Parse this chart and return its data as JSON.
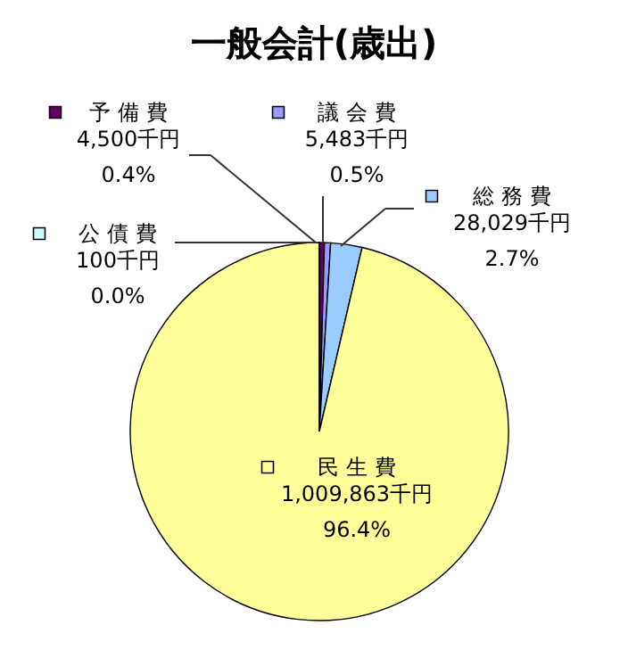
{
  "chart_data": {
    "type": "pie",
    "title": "一般会計(歳出)",
    "categories": [
      "予 備 費",
      "議 会 費",
      "総 務 費",
      "民 生 費",
      "公 債 費"
    ],
    "values": [
      4500,
      5483,
      28029,
      1009863,
      100
    ],
    "colors": [
      "#660066",
      "#9999ff",
      "#99ccff",
      "#ffff99",
      "#ccffff"
    ],
    "value_labels": [
      "4,500千円\n0.4%",
      "5,483千円\n0.5%",
      "28,029千円\n2.7%",
      "1,009,863千円\n96.4%",
      "100千円\n0.0%"
    ],
    "legend": "top"
  }
}
